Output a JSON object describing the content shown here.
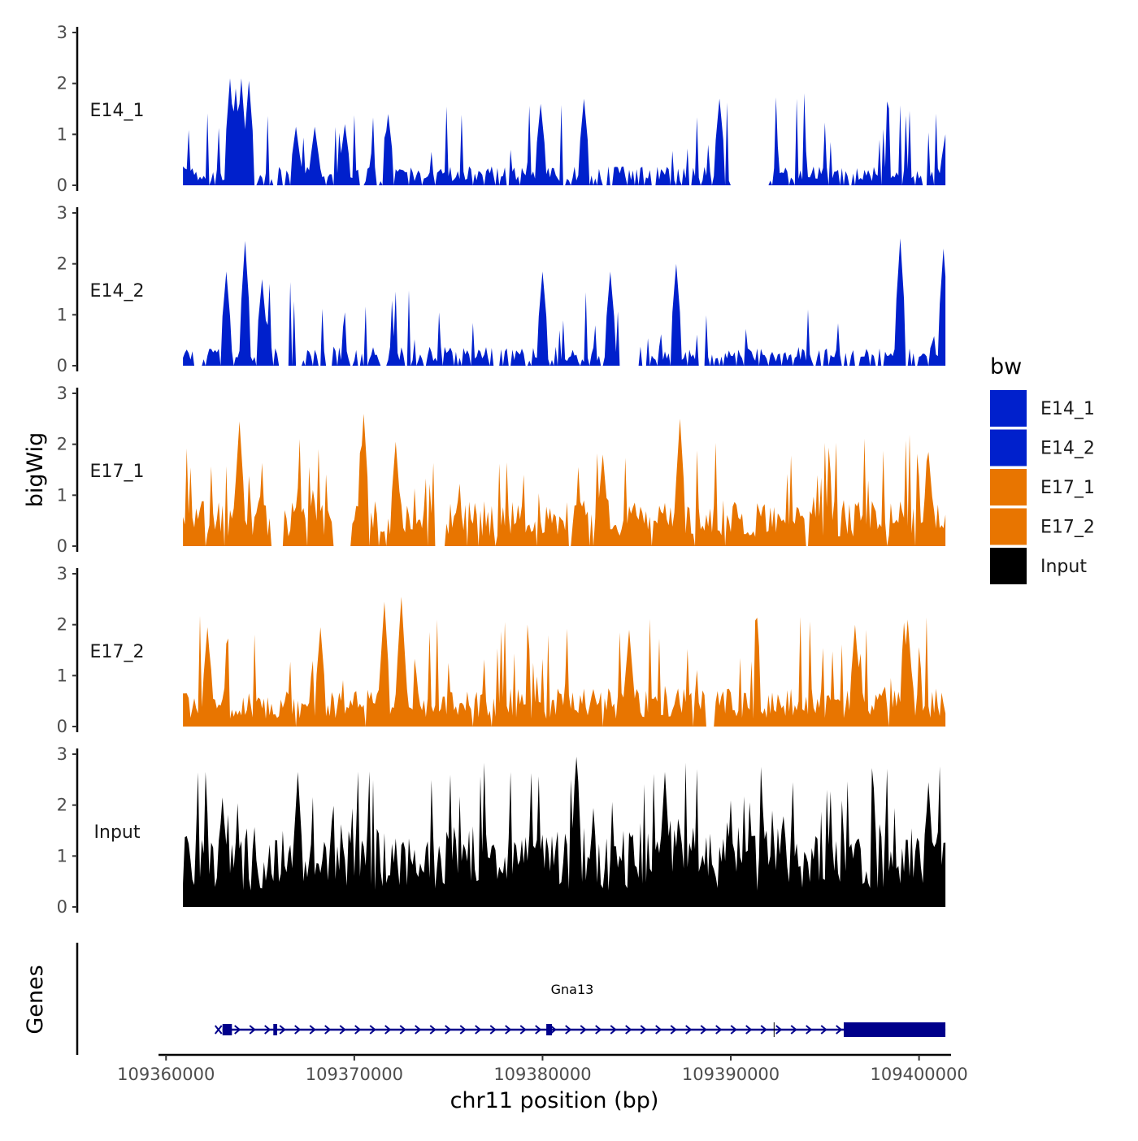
{
  "chart_data": {
    "type": "area",
    "title": "",
    "ylabel": "bigWig",
    "xlabel": "chr11 position (bp)",
    "ylim": [
      0,
      3
    ],
    "yticks": [
      0,
      1,
      2,
      3
    ],
    "xlim": [
      109359600,
      109401700
    ],
    "xticks": [
      109360000,
      109370000,
      109380000,
      109390000,
      109400000
    ],
    "xtick_labels": [
      "109360000",
      "109370000",
      "109380000",
      "109390000",
      "109400000"
    ],
    "data_range": [
      109360900,
      109401400
    ],
    "legend": {
      "title": "bw",
      "position": "right",
      "entries": [
        {
          "label": "E14_1",
          "color": "#0020CC"
        },
        {
          "label": "E14_2",
          "color": "#0020CC"
        },
        {
          "label": "E17_1",
          "color": "#E87500"
        },
        {
          "label": "E17_2",
          "color": "#E87500"
        },
        {
          "label": "Input",
          "color": "#000000"
        }
      ]
    },
    "series": [
      {
        "name": "E14_1",
        "color": "#0020CC",
        "base": 0.25,
        "spike_prob": 0.15,
        "spike_max": 1.6,
        "zero_prob": 0.22,
        "peaks": [
          [
            109363400,
            2.1
          ],
          [
            109363700,
            1.9
          ],
          [
            109364000,
            2.1
          ],
          [
            109364400,
            2.05
          ],
          [
            109366900,
            1.15
          ],
          [
            109367900,
            1.15
          ],
          [
            109369500,
            1.2
          ],
          [
            109371800,
            1.4
          ],
          [
            109379900,
            1.6
          ],
          [
            109382200,
            1.7
          ],
          [
            109389400,
            1.7
          ],
          [
            109401400,
            1.0
          ]
        ],
        "gaps": [
          [
            109390000,
            109392000
          ]
        ]
      },
      {
        "name": "E14_2",
        "color": "#0020CC",
        "base": 0.25,
        "spike_prob": 0.14,
        "spike_max": 1.5,
        "zero_prob": 0.3,
        "peaks": [
          [
            109363200,
            1.85
          ],
          [
            109364200,
            2.45
          ],
          [
            109365100,
            1.7
          ],
          [
            109380000,
            1.85
          ],
          [
            109383600,
            1.85
          ],
          [
            109387100,
            2.0
          ],
          [
            109399000,
            2.5
          ],
          [
            109401300,
            2.3
          ]
        ],
        "gaps": [
          [
            109361500,
            109361900
          ],
          [
            109366100,
            109366500
          ],
          [
            109384100,
            109385100
          ]
        ]
      },
      {
        "name": "E17_1",
        "color": "#E87500",
        "base": 0.6,
        "spike_prob": 0.16,
        "spike_max": 1.6,
        "zero_prob": 0.04,
        "peaks": [
          [
            109363900,
            2.45
          ],
          [
            109370500,
            2.6
          ],
          [
            109372200,
            2.05
          ],
          [
            109383200,
            1.8
          ],
          [
            109387300,
            2.5
          ],
          [
            109400500,
            1.85
          ]
        ],
        "gaps": [
          [
            109365600,
            109366200
          ],
          [
            109368900,
            109369800
          ],
          [
            109374300,
            109374800
          ]
        ]
      },
      {
        "name": "E17_2",
        "color": "#E87500",
        "base": 0.5,
        "spike_prob": 0.17,
        "spike_max": 1.7,
        "zero_prob": 0.03,
        "peaks": [
          [
            109362200,
            1.95
          ],
          [
            109368200,
            1.95
          ],
          [
            109371600,
            2.45
          ],
          [
            109372500,
            2.55
          ],
          [
            109384600,
            1.9
          ],
          [
            109396600,
            2.0
          ],
          [
            109399400,
            2.1
          ]
        ],
        "gaps": [
          [
            109388700,
            109389100
          ]
        ]
      },
      {
        "name": "Input",
        "color": "#000000",
        "base": 1.05,
        "spike_prob": 0.2,
        "spike_max": 1.8,
        "zero_prob": 0.0,
        "peaks": [
          [
            109363000,
            2.15
          ],
          [
            109367000,
            2.65
          ],
          [
            109381800,
            2.95
          ],
          [
            109386500,
            2.65
          ],
          [
            109400500,
            2.45
          ]
        ],
        "gaps": []
      }
    ],
    "genes_track": {
      "label": "Genes",
      "gene": "Gna13",
      "strand": "+",
      "start": 109363000,
      "end": 109401400,
      "exons": [
        [
          109363000,
          109363500
        ],
        [
          109365700,
          109365900
        ],
        [
          109380200,
          109380500
        ],
        [
          109396000,
          109401400
        ]
      ],
      "color": "#00008B"
    }
  }
}
